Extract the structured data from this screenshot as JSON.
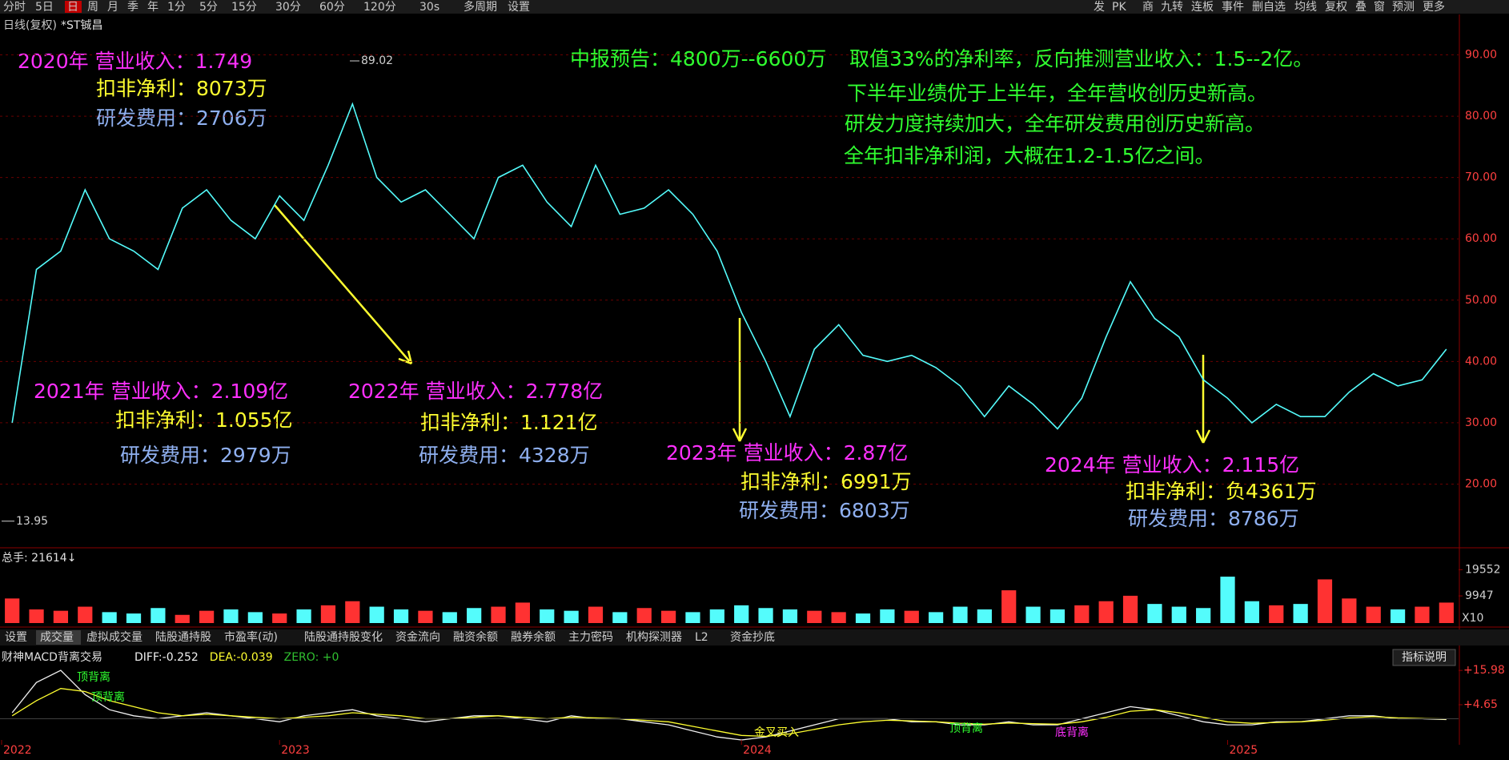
{
  "toolbar": {
    "left": [
      "分时",
      "5日",
      "日",
      "周",
      "月",
      "季",
      "年",
      "1分",
      "5分",
      "15分",
      "30分",
      "60分",
      "120分",
      "30s",
      "多周期",
      "设置"
    ],
    "right": [
      "发",
      "PK",
      "商",
      "九转",
      "连板",
      "事件",
      "删自选",
      "均线",
      "复权",
      "叠",
      "窗",
      "预测",
      "更多"
    ]
  },
  "header": {
    "period": "日线(复权)",
    "stock": "*ST铖昌"
  },
  "annotations": [
    {
      "text": "2020年  营业收入：1.749",
      "color": "#ff30ff"
    },
    {
      "text": "扣非净利：8073万",
      "color": "#ffff30"
    },
    {
      "text": "研发费用：2706万",
      "color": "#8fb0f0"
    },
    {
      "text": "中报预告：4800万--6600万",
      "color": "#30ff30"
    },
    {
      "text": "取值33%的净利率，反向推测营业收入：1.5--2亿。",
      "color": "#30ff30"
    },
    {
      "text": "下半年业绩优于上半年，全年营收创历史新高。",
      "color": "#30ff30"
    },
    {
      "text": "研发力度持续加大，全年研发费用创历史新高。",
      "color": "#30ff30"
    },
    {
      "text": "全年扣非净利润，大概在1.2-1.5亿之间。",
      "color": "#30ff30"
    },
    {
      "text": "2021年  营业收入：2.109亿",
      "color": "#ff30ff"
    },
    {
      "text": "扣非净利：1.055亿",
      "color": "#ffff30"
    },
    {
      "text": "研发费用：2979万",
      "color": "#8fb0f0"
    },
    {
      "text": "2022年 营业收入：2.778亿",
      "color": "#ff30ff"
    },
    {
      "text": "扣非净利：1.121亿",
      "color": "#ffff30"
    },
    {
      "text": "研发费用：4328万",
      "color": "#8fb0f0"
    },
    {
      "text": "2023年 营业收入：2.87亿",
      "color": "#ff30ff"
    },
    {
      "text": "扣非净利：6991万",
      "color": "#ffff30"
    },
    {
      "text": "研发费用：6803万",
      "color": "#8fb0f0"
    },
    {
      "text": "2024年  营业收入：2.115亿",
      "color": "#ff30ff"
    },
    {
      "text": "扣非净利：负4361万",
      "color": "#ffff30"
    },
    {
      "text": "研发费用：8786万",
      "color": "#8fb0f0"
    }
  ],
  "tabs": [
    "设置",
    "成交量",
    "虚拟成交量",
    "陆股通持股",
    "市盈率(动)",
    "陆股通持股变化",
    "资金流向",
    "融资余额",
    "融券余额",
    "主力密码",
    "机构探测器",
    "L2",
    "资金抄底"
  ],
  "indicator_button": "指标说明",
  "chart_data": [
    {
      "type": "line",
      "color": "#54fcfc",
      "values": [
        30,
        55,
        58,
        68,
        60,
        58,
        55,
        65,
        68,
        63,
        60,
        67,
        63,
        72,
        82,
        70,
        66,
        68,
        64,
        60,
        70,
        72,
        66,
        62,
        72,
        64,
        65,
        68,
        64,
        58,
        48,
        40,
        31,
        42,
        46,
        41,
        40,
        41,
        39,
        36,
        31,
        36,
        33,
        29,
        34,
        44,
        53,
        47,
        44,
        37,
        34,
        30,
        33,
        31,
        31,
        35,
        38,
        36,
        37,
        42
      ],
      "ylim": [
        10,
        96.6
      ],
      "yticks": [
        {
          "value": 20,
          "label": "20.00"
        },
        {
          "value": 30,
          "label": "30.00"
        },
        {
          "value": 40,
          "label": "40.00"
        },
        {
          "value": 50,
          "label": "50.00"
        },
        {
          "value": 60,
          "label": "60.00"
        },
        {
          "value": 70,
          "label": "70.00"
        },
        {
          "value": 80,
          "label": "80.00"
        },
        {
          "value": 90,
          "label": "90.00"
        }
      ],
      "grid": true,
      "high": 89.02,
      "low": 13.95
    },
    {
      "type": "bar",
      "title": "总手: 21614↓",
      "colors": [
        "#ff3232",
        "#54fcfc"
      ],
      "values": [
        9000,
        5000,
        4500,
        6000,
        4000,
        3500,
        5500,
        3000,
        4500,
        5000,
        4000,
        3500,
        5000,
        6500,
        8000,
        6000,
        5000,
        4500,
        4000,
        5500,
        6000,
        7500,
        5000,
        4500,
        6000,
        4000,
        5500,
        4500,
        4000,
        5000,
        6500,
        5500,
        5000,
        4500,
        4000,
        3500,
        5000,
        4500,
        4000,
        6000,
        5000,
        12000,
        6000,
        5000,
        6500,
        8000,
        10000,
        7000,
        6000,
        5500,
        17000,
        8000,
        6500,
        7000,
        16000,
        9000,
        6000,
        5000,
        6000,
        7500
      ],
      "ylim": [
        0,
        22000
      ],
      "yticks": [
        9947,
        19552
      ],
      "unit": "X10"
    },
    {
      "type": "line",
      "title": "财神MACD背离交易",
      "categories": [
        "2022",
        null,
        null,
        null,
        null,
        null,
        null,
        null,
        null,
        null,
        null,
        "2023",
        null,
        null,
        null,
        null,
        null,
        null,
        null,
        null,
        null,
        null,
        null,
        null,
        null,
        null,
        null,
        null,
        null,
        null,
        "2024",
        null,
        null,
        null,
        null,
        null,
        null,
        null,
        null,
        null,
        null,
        null,
        null,
        null,
        null,
        null,
        null,
        null,
        null,
        null,
        "2025",
        null,
        null,
        null,
        null,
        null,
        null,
        null,
        null,
        null
      ],
      "series": [
        {
          "name": "DIFF: ",
          "color": "#f0f0f0",
          "values": [
            2,
            12,
            16,
            8,
            3,
            1,
            0,
            1,
            2,
            1,
            0,
            -1,
            1,
            2,
            3,
            1,
            0,
            -1,
            0,
            1,
            1,
            0,
            -1,
            1,
            0,
            0,
            -1,
            -2,
            -4,
            -6,
            -7,
            -6,
            -4,
            -2,
            0,
            0,
            0,
            -1,
            -1,
            -2,
            -2,
            -1,
            -2,
            -2,
            0,
            2,
            4,
            3,
            1,
            -1,
            -2,
            -2,
            -1,
            -1,
            0,
            1,
            1,
            0,
            0,
            -0.252
          ]
        },
        {
          "name": "DEA: ",
          "color": "#ffff30",
          "values": [
            1,
            6,
            10,
            9,
            6,
            4,
            2,
            1,
            1.5,
            1,
            0.5,
            0,
            0.5,
            1,
            2,
            1.5,
            1,
            0,
            0,
            0.5,
            1,
            0.5,
            0,
            0.5,
            0.3,
            0,
            -0.5,
            -1,
            -2.5,
            -4,
            -5.5,
            -5.8,
            -5,
            -3.5,
            -2,
            -1,
            -0.5,
            -0.7,
            -1,
            -1.5,
            -1.8,
            -1.4,
            -1.6,
            -1.8,
            -1,
            0.5,
            2.5,
            3,
            2,
            0.5,
            -1,
            -1.5,
            -1.2,
            -1,
            -0.5,
            0.3,
            0.7,
            0.3,
            0.1,
            -0.039
          ]
        }
      ],
      "zero_label": "ZERO: +0",
      "signals": [
        {
          "text": "顶背离",
          "color": "#30ff30"
        },
        {
          "text": "顶背离",
          "color": "#30ff30"
        },
        {
          "text": "金叉买入",
          "color": "#ffff30"
        },
        {
          "text": "顶背离",
          "color": "#30ff30"
        },
        {
          "text": "底背离",
          "color": "#ff30ff"
        }
      ],
      "ylim": [
        -7,
        18.4
      ],
      "yticks": [
        {
          "value": 4.65,
          "label": "+4.65"
        },
        {
          "value": 15.98,
          "label": "+15.98"
        }
      ]
    }
  ]
}
